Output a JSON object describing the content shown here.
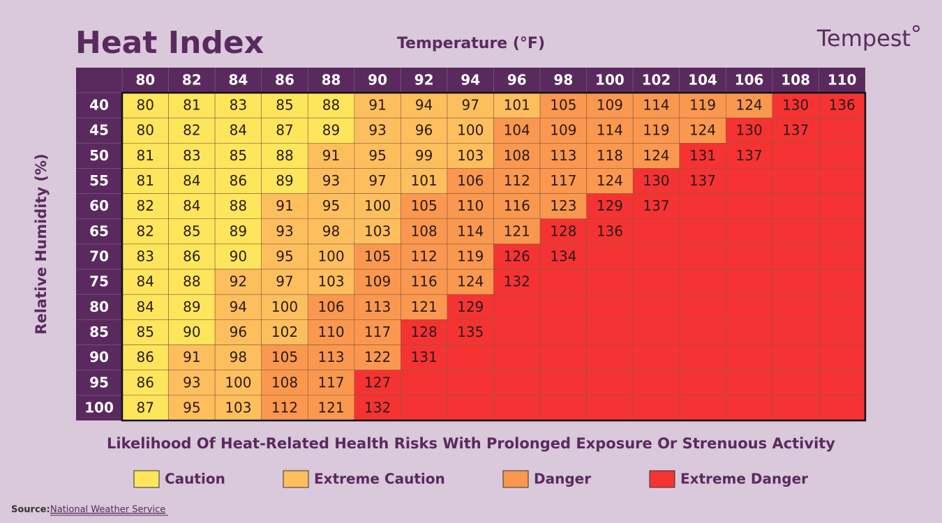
{
  "title": "Heat Index",
  "brand": "Tempest",
  "x_label": "Temperature (°F)",
  "y_label": "Relative Humidity (%)",
  "columns": [
    80,
    82,
    84,
    86,
    88,
    90,
    92,
    94,
    96,
    98,
    100,
    102,
    104,
    106,
    108,
    110
  ],
  "rows": [
    {
      "humidity": 40,
      "values": [
        80,
        81,
        83,
        85,
        88,
        91,
        94,
        97,
        101,
        105,
        109,
        114,
        119,
        124,
        130,
        136
      ],
      "levels": [
        0,
        0,
        0,
        0,
        0,
        1,
        1,
        1,
        1,
        2,
        2,
        2,
        2,
        2,
        3,
        3
      ]
    },
    {
      "humidity": 45,
      "values": [
        80,
        82,
        84,
        87,
        89,
        93,
        96,
        100,
        104,
        109,
        114,
        119,
        124,
        130,
        137,
        null
      ],
      "levels": [
        0,
        0,
        0,
        0,
        0,
        1,
        1,
        1,
        2,
        2,
        2,
        2,
        2,
        3,
        3,
        3
      ]
    },
    {
      "humidity": 50,
      "values": [
        81,
        83,
        85,
        88,
        91,
        95,
        99,
        103,
        108,
        113,
        118,
        124,
        131,
        137,
        null,
        null
      ],
      "levels": [
        0,
        0,
        0,
        0,
        1,
        1,
        1,
        1,
        2,
        2,
        2,
        2,
        3,
        3,
        3,
        3
      ]
    },
    {
      "humidity": 55,
      "values": [
        81,
        84,
        86,
        89,
        93,
        97,
        101,
        106,
        112,
        117,
        124,
        130,
        137,
        null,
        null,
        null
      ],
      "levels": [
        0,
        0,
        0,
        0,
        1,
        1,
        1,
        2,
        2,
        2,
        2,
        3,
        3,
        3,
        3,
        3
      ]
    },
    {
      "humidity": 60,
      "values": [
        82,
        84,
        88,
        91,
        95,
        100,
        105,
        110,
        116,
        123,
        129,
        137,
        null,
        null,
        null,
        null
      ],
      "levels": [
        0,
        0,
        0,
        1,
        1,
        1,
        2,
        2,
        2,
        2,
        3,
        3,
        3,
        3,
        3,
        3
      ]
    },
    {
      "humidity": 65,
      "values": [
        82,
        85,
        89,
        93,
        98,
        103,
        108,
        114,
        121,
        128,
        136,
        null,
        null,
        null,
        null,
        null
      ],
      "levels": [
        0,
        0,
        0,
        1,
        1,
        1,
        2,
        2,
        2,
        3,
        3,
        3,
        3,
        3,
        3,
        3
      ]
    },
    {
      "humidity": 70,
      "values": [
        83,
        86,
        90,
        95,
        100,
        105,
        112,
        119,
        126,
        134,
        null,
        null,
        null,
        null,
        null,
        null
      ],
      "levels": [
        0,
        0,
        0,
        1,
        1,
        2,
        2,
        2,
        3,
        3,
        3,
        3,
        3,
        3,
        3,
        3
      ]
    },
    {
      "humidity": 75,
      "values": [
        84,
        88,
        92,
        97,
        103,
        109,
        116,
        124,
        132,
        null,
        null,
        null,
        null,
        null,
        null,
        null
      ],
      "levels": [
        0,
        0,
        1,
        1,
        1,
        2,
        2,
        2,
        3,
        3,
        3,
        3,
        3,
        3,
        3,
        3
      ]
    },
    {
      "humidity": 80,
      "values": [
        84,
        89,
        94,
        100,
        106,
        113,
        121,
        129,
        null,
        null,
        null,
        null,
        null,
        null,
        null,
        null
      ],
      "levels": [
        0,
        0,
        1,
        1,
        2,
        2,
        2,
        3,
        3,
        3,
        3,
        3,
        3,
        3,
        3,
        3
      ]
    },
    {
      "humidity": 85,
      "values": [
        85,
        90,
        96,
        102,
        110,
        117,
        128,
        135,
        null,
        null,
        null,
        null,
        null,
        null,
        null,
        null
      ],
      "levels": [
        0,
        0,
        1,
        1,
        2,
        2,
        3,
        3,
        3,
        3,
        3,
        3,
        3,
        3,
        3,
        3
      ]
    },
    {
      "humidity": 90,
      "values": [
        86,
        91,
        98,
        105,
        113,
        122,
        131,
        null,
        null,
        null,
        null,
        null,
        null,
        null,
        null,
        null
      ],
      "levels": [
        0,
        1,
        1,
        2,
        2,
        2,
        3,
        3,
        3,
        3,
        3,
        3,
        3,
        3,
        3,
        3
      ]
    },
    {
      "humidity": 95,
      "values": [
        86,
        93,
        100,
        108,
        117,
        127,
        null,
        null,
        null,
        null,
        null,
        null,
        null,
        null,
        null,
        null
      ],
      "levels": [
        0,
        1,
        1,
        2,
        2,
        3,
        3,
        3,
        3,
        3,
        3,
        3,
        3,
        3,
        3,
        3
      ]
    },
    {
      "humidity": 100,
      "values": [
        87,
        95,
        103,
        112,
        121,
        132,
        null,
        null,
        null,
        null,
        null,
        null,
        null,
        null,
        null,
        null
      ],
      "levels": [
        0,
        1,
        1,
        2,
        2,
        3,
        3,
        3,
        3,
        3,
        3,
        3,
        3,
        3,
        3,
        3
      ]
    }
  ],
  "subtitle": "Likelihood Of Heat-Related Health Risks With Prolonged Exposure Or Strenuous Activity",
  "legend": [
    {
      "label": "Caution",
      "color": "#fde65c"
    },
    {
      "label": "Extreme Caution",
      "color": "#fdbf5e"
    },
    {
      "label": "Danger",
      "color": "#fa9850"
    },
    {
      "label": "Extreme Danger",
      "color": "#f53333"
    }
  ],
  "source": {
    "label": "Source:",
    "link": "National Weather Service"
  }
}
